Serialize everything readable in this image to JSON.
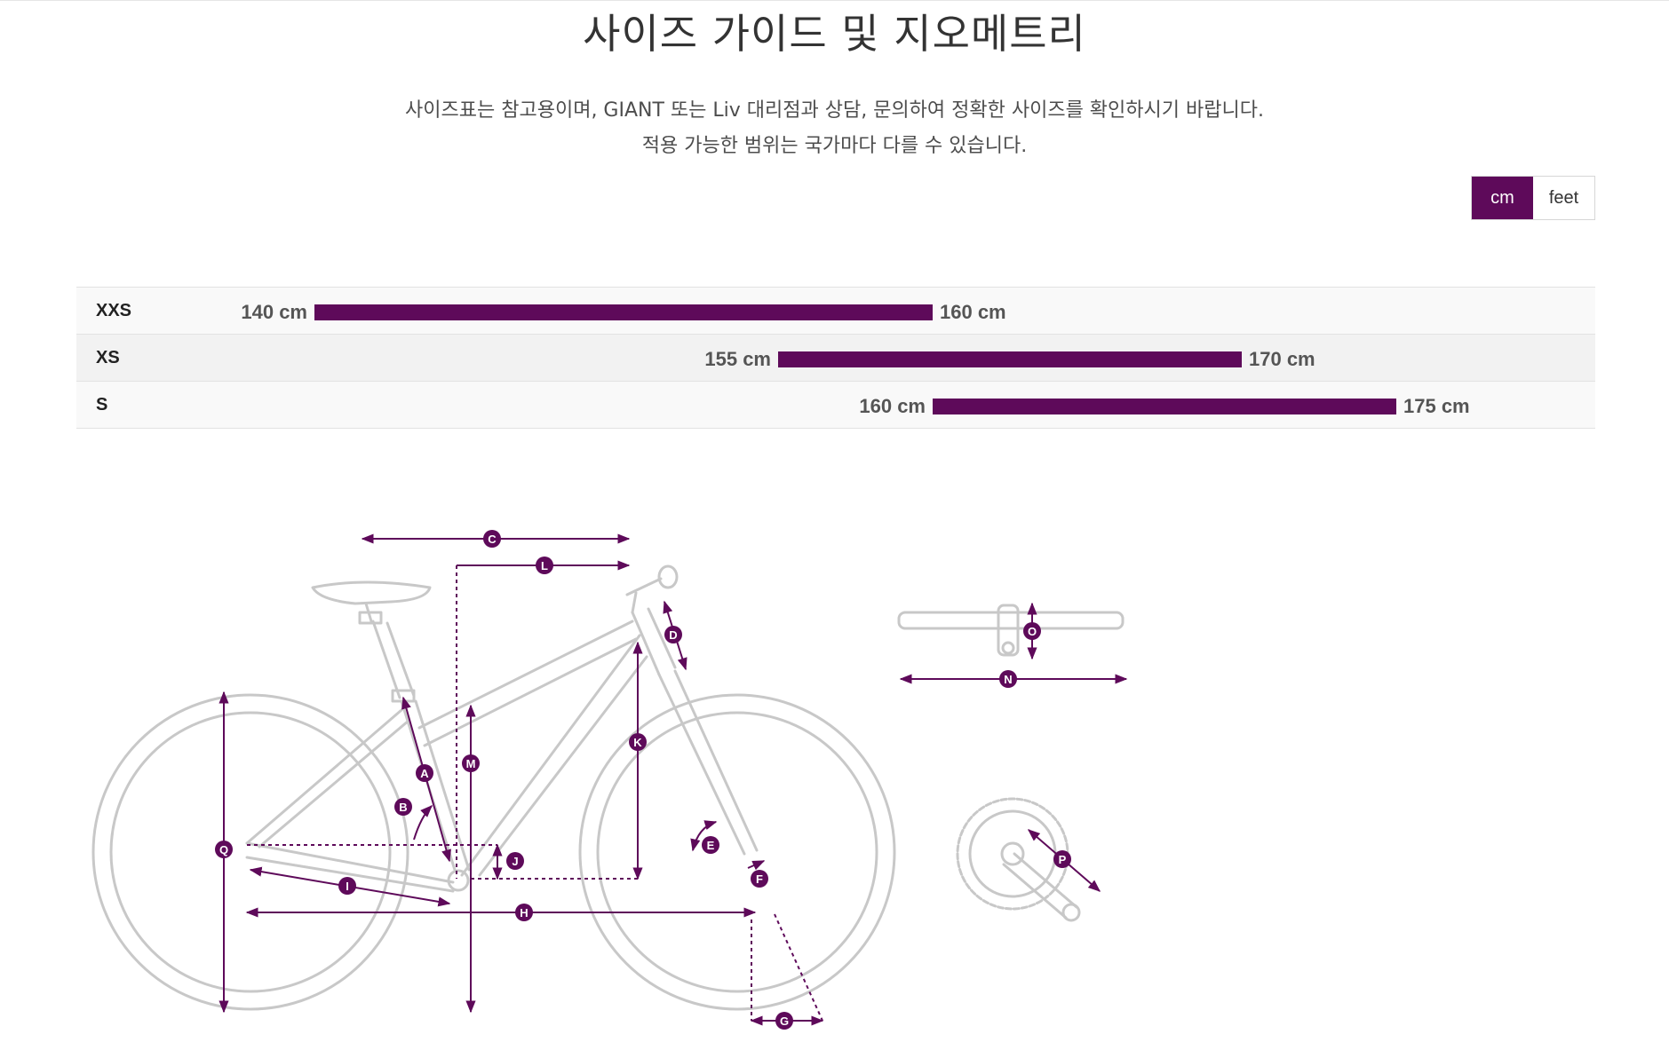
{
  "page": {
    "title": "사이즈 가이드 및 지오메트리",
    "intro_line1": "사이즈표는 참고용이며, GIANT 또는 Liv 대리점과 상담, 문의하여 정확한 사이즈를 확인하시기 바랍니다.",
    "intro_line2": "적용 가능한 범위는 국가마다 다를 수 있습니다."
  },
  "unit_toggle": {
    "selected": "cm",
    "options": [
      {
        "label": "cm",
        "active": true
      },
      {
        "label": "feet",
        "active": false
      }
    ]
  },
  "size_chart": {
    "scale_min_cm": 140,
    "scale_max_cm": 175,
    "rows": [
      {
        "size": "XXS",
        "min": 140,
        "max": 160,
        "min_label": "140 cm",
        "max_label": "160 cm"
      },
      {
        "size": "XS",
        "min": 155,
        "max": 170,
        "min_label": "155 cm",
        "max_label": "170 cm"
      },
      {
        "size": "S",
        "min": 160,
        "max": 175,
        "min_label": "160 cm",
        "max_label": "175 cm"
      }
    ]
  },
  "geometry_labels": [
    "A",
    "B",
    "C",
    "D",
    "E",
    "F",
    "G",
    "H",
    "I",
    "J",
    "K",
    "L",
    "M",
    "N",
    "O",
    "P",
    "Q"
  ],
  "colors": {
    "accent": "#5e0a5a",
    "frame_outline": "#c8c8c8",
    "text": "#333333"
  }
}
